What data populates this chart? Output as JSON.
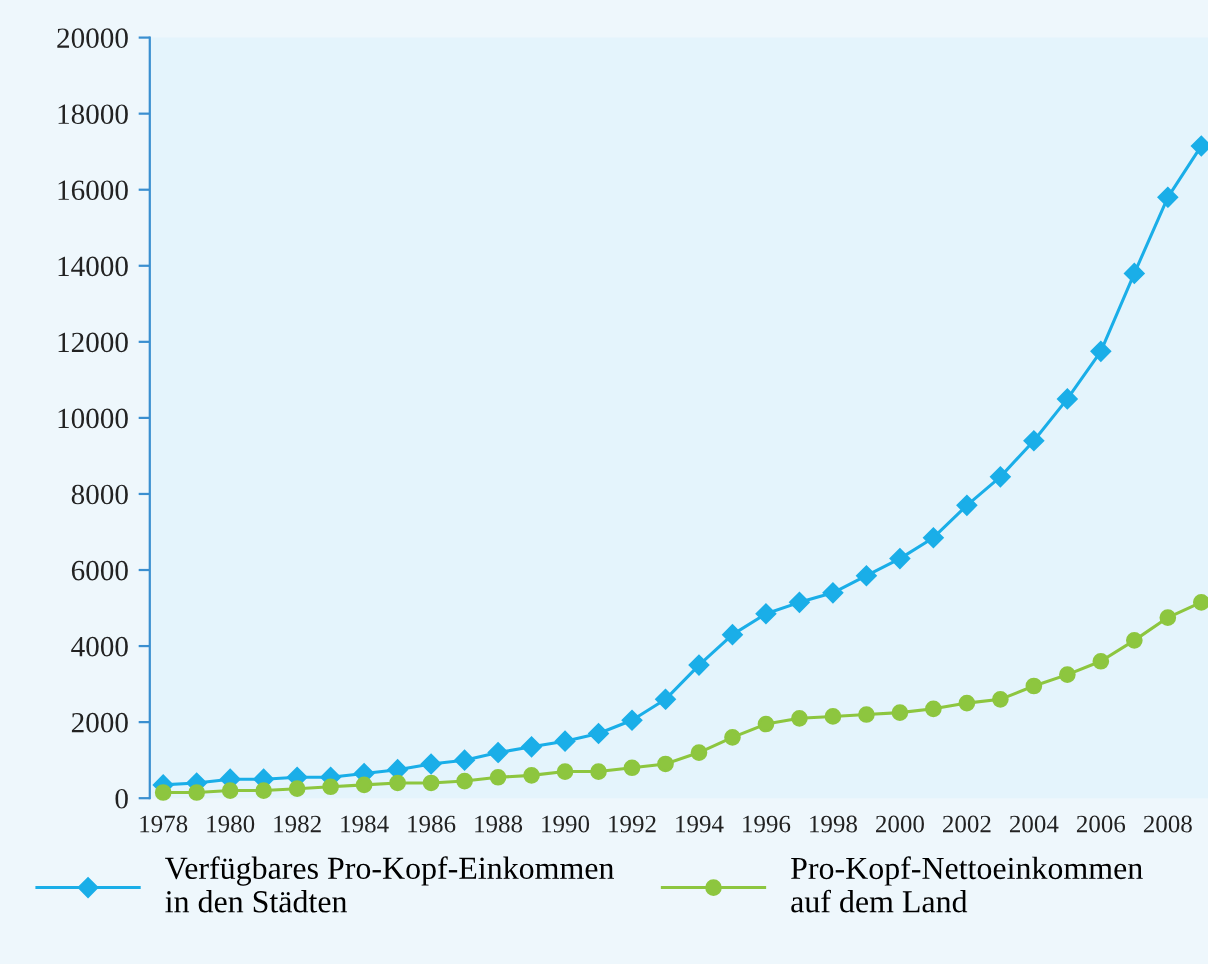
{
  "chart_data": {
    "type": "line",
    "x": [
      1978,
      1979,
      1980,
      1981,
      1982,
      1983,
      1984,
      1985,
      1986,
      1987,
      1988,
      1989,
      1990,
      1991,
      1992,
      1993,
      1994,
      1995,
      1996,
      1997,
      1998,
      1999,
      2000,
      2001,
      2002,
      2003,
      2004,
      2005,
      2006,
      2007,
      2008,
      2009
    ],
    "series": [
      {
        "name": "Verfügbares Pro-Kopf-Einkommen\nin den Städten",
        "color": "#1aaee8",
        "marker": "diamond",
        "values": [
          350,
          400,
          500,
          500,
          550,
          550,
          650,
          750,
          900,
          1000,
          1200,
          1350,
          1500,
          1700,
          2050,
          2600,
          3500,
          4300,
          4850,
          5150,
          5400,
          5850,
          6300,
          6850,
          7700,
          8450,
          9400,
          10500,
          11750,
          13800,
          15800,
          17150
        ]
      },
      {
        "name": "Pro-Kopf-Nettoeinkommen\nauf dem Land",
        "color": "#8dc63f",
        "marker": "circle",
        "values": [
          150,
          150,
          200,
          200,
          250,
          300,
          350,
          400,
          400,
          450,
          550,
          600,
          700,
          700,
          800,
          900,
          1200,
          1600,
          1950,
          2100,
          2150,
          2200,
          2250,
          2350,
          2500,
          2600,
          2950,
          3250,
          3600,
          4150,
          4750,
          5150
        ]
      }
    ],
    "xlim": [
      1977.6,
      2009.2
    ],
    "xticks": [
      1978,
      1980,
      1982,
      1984,
      1986,
      1988,
      1990,
      1992,
      1994,
      1996,
      1998,
      2000,
      2002,
      2004,
      2006,
      2008
    ],
    "ylim": [
      0,
      20000
    ],
    "yticks": [
      0,
      2000,
      4000,
      6000,
      8000,
      10000,
      12000,
      14000,
      16000,
      18000,
      20000
    ],
    "grid": false,
    "legend": "bottom",
    "line_style": "solid"
  }
}
